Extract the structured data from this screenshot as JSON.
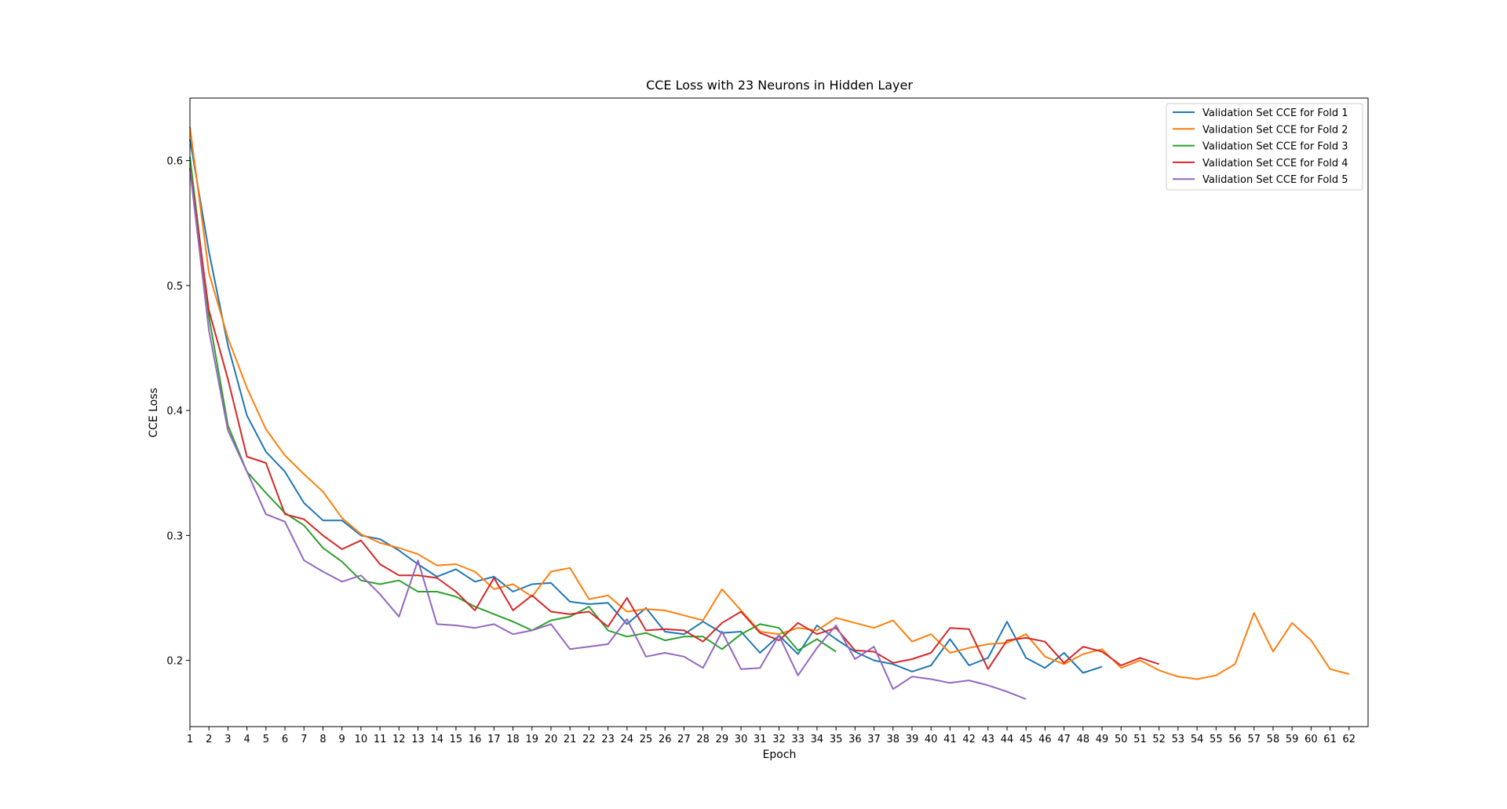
{
  "chart_data": {
    "type": "line",
    "title": "CCE Loss with 23 Neurons in Hidden Layer",
    "xlabel": "Epoch",
    "ylabel": "CCE Loss",
    "xlim": [
      1,
      63
    ],
    "ylim": [
      0.147,
      0.65
    ],
    "x_ticks": [
      "1",
      "2",
      "3",
      "4",
      "5",
      "6",
      "7",
      "8",
      "9",
      "10",
      "11",
      "12",
      "13",
      "14",
      "15",
      "16",
      "17",
      "18",
      "19",
      "20",
      "21",
      "22",
      "23",
      "24",
      "25",
      "26",
      "27",
      "28",
      "29",
      "30",
      "31",
      "32",
      "33",
      "34",
      "35",
      "36",
      "37",
      "38",
      "39",
      "40",
      "41",
      "42",
      "43",
      "44",
      "45",
      "46",
      "47",
      "48",
      "49",
      "50",
      "51",
      "52",
      "53",
      "54",
      "55",
      "56",
      "57",
      "58",
      "59",
      "60",
      "61",
      "62"
    ],
    "y_ticks": [
      {
        "value": 0.2,
        "label": "0.2"
      },
      {
        "value": 0.3,
        "label": "0.3"
      },
      {
        "value": 0.4,
        "label": "0.4"
      },
      {
        "value": 0.5,
        "label": "0.5"
      },
      {
        "value": 0.6,
        "label": "0.6"
      }
    ],
    "grid": false,
    "legend_position": "top-right",
    "series": [
      {
        "name": "Validation Set CCE for Fold 1",
        "color": "#1f77b4",
        "values": [
          0.617,
          0.527,
          0.452,
          0.396,
          0.367,
          0.351,
          0.326,
          0.312,
          0.312,
          0.3,
          0.297,
          0.288,
          0.277,
          0.267,
          0.273,
          0.263,
          0.267,
          0.255,
          0.261,
          0.262,
          0.247,
          0.245,
          0.246,
          0.229,
          0.242,
          0.223,
          0.221,
          0.231,
          0.222,
          0.223,
          0.206,
          0.22,
          0.205,
          0.228,
          0.217,
          0.207,
          0.2,
          0.197,
          0.191,
          0.196,
          0.217,
          0.196,
          0.202,
          0.231,
          0.202,
          0.194,
          0.206,
          0.19,
          0.195
        ]
      },
      {
        "name": "Validation Set CCE for Fold 2",
        "color": "#ff7f0e",
        "values": [
          0.627,
          0.51,
          0.458,
          0.418,
          0.385,
          0.364,
          0.349,
          0.335,
          0.314,
          0.301,
          0.294,
          0.29,
          0.285,
          0.276,
          0.277,
          0.271,
          0.257,
          0.261,
          0.251,
          0.271,
          0.274,
          0.249,
          0.252,
          0.239,
          0.241,
          0.24,
          0.236,
          0.232,
          0.257,
          0.24,
          0.223,
          0.221,
          0.226,
          0.224,
          0.234,
          0.23,
          0.226,
          0.232,
          0.215,
          0.221,
          0.206,
          0.21,
          0.213,
          0.214,
          0.221,
          0.203,
          0.197,
          0.205,
          0.209,
          0.194,
          0.2,
          0.192,
          0.187,
          0.185,
          0.188,
          0.197,
          0.238,
          0.207,
          0.23,
          0.216,
          0.193,
          0.189
        ]
      },
      {
        "name": "Validation Set CCE for Fold 3",
        "color": "#2ca02c",
        "values": [
          0.603,
          0.475,
          0.388,
          0.351,
          0.334,
          0.318,
          0.308,
          0.29,
          0.279,
          0.264,
          0.261,
          0.264,
          0.255,
          0.255,
          0.251,
          0.243,
          0.237,
          0.231,
          0.224,
          0.232,
          0.235,
          0.243,
          0.224,
          0.219,
          0.222,
          0.216,
          0.219,
          0.219,
          0.209,
          0.221,
          0.229,
          0.226,
          0.208,
          0.217,
          0.207
        ]
      },
      {
        "name": "Validation Set CCE for Fold 4",
        "color": "#d62728",
        "values": [
          0.594,
          0.48,
          0.425,
          0.363,
          0.358,
          0.317,
          0.313,
          0.3,
          0.289,
          0.296,
          0.277,
          0.268,
          0.268,
          0.266,
          0.255,
          0.24,
          0.266,
          0.24,
          0.252,
          0.239,
          0.237,
          0.239,
          0.227,
          0.25,
          0.224,
          0.225,
          0.224,
          0.215,
          0.23,
          0.239,
          0.222,
          0.216,
          0.23,
          0.221,
          0.226,
          0.208,
          0.207,
          0.198,
          0.201,
          0.206,
          0.226,
          0.225,
          0.193,
          0.216,
          0.218,
          0.215,
          0.198,
          0.211,
          0.207,
          0.196,
          0.202,
          0.197
        ]
      },
      {
        "name": "Validation Set CCE for Fold 5",
        "color": "#9467bd",
        "values": [
          0.593,
          0.464,
          0.384,
          0.351,
          0.317,
          0.311,
          0.28,
          0.271,
          0.263,
          0.268,
          0.253,
          0.235,
          0.28,
          0.229,
          0.228,
          0.226,
          0.229,
          0.221,
          0.224,
          0.229,
          0.209,
          0.211,
          0.213,
          0.233,
          0.203,
          0.206,
          0.203,
          0.194,
          0.223,
          0.193,
          0.194,
          0.22,
          0.188,
          0.21,
          0.228,
          0.201,
          0.211,
          0.177,
          0.187,
          0.185,
          0.182,
          0.184,
          0.18,
          0.175,
          0.169
        ]
      }
    ]
  }
}
